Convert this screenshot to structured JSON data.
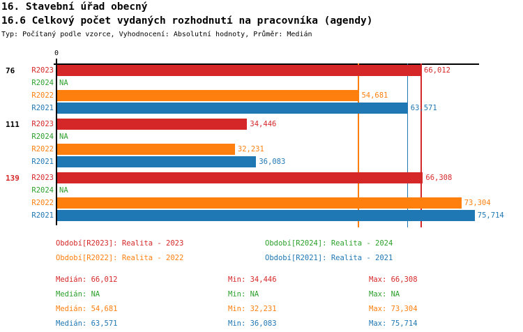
{
  "header": {
    "title": "16. Stavební úřad obecný",
    "subtitle": "16.6 Celkový počet vydaných rozhodnutí na pracovníka (agendy)",
    "meta": "Typ: Počítaný podle vzorce, Vyhodnocení: Absolutní hodnoty, Průměr: Medián"
  },
  "chart_data": {
    "type": "bar",
    "orientation": "horizontal",
    "value_axis": {
      "zero_label": "0",
      "min": 0,
      "max": 76500,
      "grid": "median-lines-only"
    },
    "series": [
      {
        "id": "R2023",
        "name": "Realita - 2023",
        "color": "#d62728"
      },
      {
        "id": "R2024",
        "name": "Realita - 2024",
        "color": "#2ca02c"
      },
      {
        "id": "R2022",
        "name": "Realita - 2022",
        "color": "#ff7f0e"
      },
      {
        "id": "R2021",
        "name": "Realita - 2021",
        "color": "#1f77b4"
      }
    ],
    "groups": [
      {
        "label": "76",
        "label_color": "#000000",
        "bars": [
          {
            "series": "R2023",
            "value": 66012,
            "display": "66,012"
          },
          {
            "series": "R2024",
            "value": null,
            "display": "NA"
          },
          {
            "series": "R2022",
            "value": 54681,
            "display": "54,681"
          },
          {
            "series": "R2021",
            "value": 63571,
            "display": "63,571"
          }
        ]
      },
      {
        "label": "111",
        "label_color": "#000000",
        "bars": [
          {
            "series": "R2023",
            "value": 34446,
            "display": "34,446"
          },
          {
            "series": "R2024",
            "value": null,
            "display": "NA"
          },
          {
            "series": "R2022",
            "value": 32231,
            "display": "32,231"
          },
          {
            "series": "R2021",
            "value": 36083,
            "display": "36,083"
          }
        ]
      },
      {
        "label": "139",
        "label_color": "#d62728",
        "bars": [
          {
            "series": "R2023",
            "value": 66308,
            "display": "66,308"
          },
          {
            "series": "R2024",
            "value": null,
            "display": "NA"
          },
          {
            "series": "R2022",
            "value": 73304,
            "display": "73,304"
          },
          {
            "series": "R2021",
            "value": 75714,
            "display": "75,714"
          }
        ]
      }
    ],
    "median_lines": [
      {
        "series": "R2022",
        "value": 54681,
        "color": "#ff7f0e"
      },
      {
        "series": "R2021",
        "value": 63571,
        "color": "#1f77b4"
      },
      {
        "series": "R2023",
        "value": 66012,
        "color": "#d62728"
      }
    ]
  },
  "legend": {
    "items": [
      {
        "label": "Období[R2023]: Realita - 2023",
        "color": "#d62728"
      },
      {
        "label": "Období[R2024]: Realita - 2024",
        "color": "#2ca02c"
      },
      {
        "label": "Období[R2022]: Realita - 2022",
        "color": "#ff7f0e"
      },
      {
        "label": "Období[R2021]: Realita - 2021",
        "color": "#1f77b4"
      }
    ]
  },
  "stats": {
    "rows": [
      {
        "median": "Medián: 66,012",
        "min": "Min: 34,446",
        "max": "Max: 66,308",
        "color": "#d62728"
      },
      {
        "median": "Medián: NA",
        "min": "Min: NA",
        "max": "Max: NA",
        "color": "#2ca02c"
      },
      {
        "median": "Medián: 54,681",
        "min": "Min: 32,231",
        "max": "Max: 73,304",
        "color": "#ff7f0e"
      },
      {
        "median": "Medián: 63,571",
        "min": "Min: 36,083",
        "max": "Max: 75,714",
        "color": "#1f77b4"
      }
    ]
  }
}
